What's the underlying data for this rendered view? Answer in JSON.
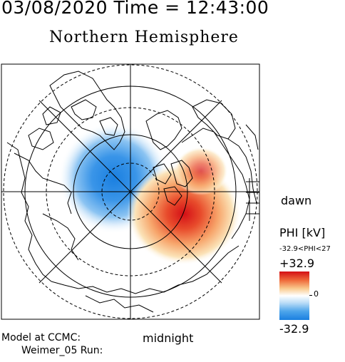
{
  "header": {
    "datetime": "03/08/2020 Time = 12:43:00",
    "title": "Northern Hemisphere"
  },
  "labels": {
    "dawn": "dawn",
    "midnight": "midnight"
  },
  "model": {
    "line1": "Model at CCMC:",
    "line2": "Weimer_05 Run:"
  },
  "legend": {
    "title": "PHI [kV]",
    "range": "-32.9<PHI<27",
    "max": "+32.9",
    "zero": "0",
    "min": "-32.9",
    "colors": {
      "positive": "#d40f16",
      "neutral": "#ffffff",
      "negative": "#1a7fe0"
    }
  },
  "map": {
    "projection": "polar stereographic, north pole centered",
    "potential_min_kv": -32.9,
    "potential_max_kv": 27
  }
}
